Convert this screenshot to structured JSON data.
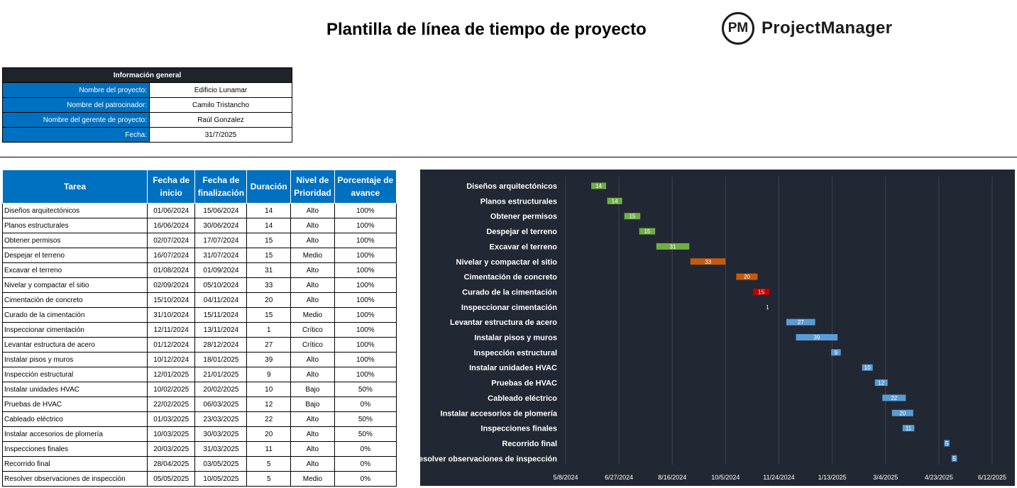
{
  "header": {
    "title": "Plantilla de línea de tiempo de proyecto",
    "logo_mark": "PM",
    "logo_text": "ProjectManager"
  },
  "info": {
    "heading": "Información general",
    "rows": [
      {
        "label": "Nombre del proyecto:",
        "value": "Edificio Lunamar"
      },
      {
        "label": "Nombre del patrocinador:",
        "value": "Camilo Tristancho"
      },
      {
        "label": "Nombre del gerente de proyecto:",
        "value": "Raúl Gonzalez"
      },
      {
        "label": "Fecha:",
        "value": "31/7/2025"
      }
    ]
  },
  "table": {
    "headers": [
      "Tarea",
      "Fecha de inicio",
      "Fecha de finalización",
      "Duración",
      "Nivel de Prioridad",
      "Porcentaje de avance"
    ],
    "rows": [
      {
        "task": "Diseños arquitectónicos",
        "start": "01/06/2024",
        "end": "15/06/2024",
        "duration": "14",
        "priority": "Alto",
        "progress": "100%"
      },
      {
        "task": "Planos estructurales",
        "start": "16/06/2024",
        "end": "30/06/2024",
        "duration": "14",
        "priority": "Alto",
        "progress": "100%"
      },
      {
        "task": "Obtener permisos",
        "start": "02/07/2024",
        "end": "17/07/2024",
        "duration": "15",
        "priority": "Alto",
        "progress": "100%"
      },
      {
        "task": "Despejar el terreno",
        "start": "16/07/2024",
        "end": "31/07/2024",
        "duration": "15",
        "priority": "Medio",
        "progress": "100%"
      },
      {
        "task": "Excavar el terreno",
        "start": "01/08/2024",
        "end": "01/09/2024",
        "duration": "31",
        "priority": "Alto",
        "progress": "100%"
      },
      {
        "task": "Nivelar y compactar el sitio",
        "start": "02/09/2024",
        "end": "05/10/2024",
        "duration": "33",
        "priority": "Alto",
        "progress": "100%"
      },
      {
        "task": "Cimentación de concreto",
        "start": "15/10/2024",
        "end": "04/11/2024",
        "duration": "20",
        "priority": "Alto",
        "progress": "100%"
      },
      {
        "task": "Curado de la cimentación",
        "start": "31/10/2024",
        "end": "15/11/2024",
        "duration": "15",
        "priority": "Medio",
        "progress": "100%"
      },
      {
        "task": "Inspeccionar cimentación",
        "start": "12/11/2024",
        "end": "13/11/2024",
        "duration": "1",
        "priority": "Crítico",
        "progress": "100%"
      },
      {
        "task": "Levantar estructura de acero",
        "start": "01/12/2024",
        "end": "28/12/2024",
        "duration": "27",
        "priority": "Crítico",
        "progress": "100%"
      },
      {
        "task": "Instalar pisos y muros",
        "start": "10/12/2024",
        "end": "18/01/2025",
        "duration": "39",
        "priority": "Alto",
        "progress": "100%"
      },
      {
        "task": "Inspección estructural",
        "start": "12/01/2025",
        "end": "21/01/2025",
        "duration": "9",
        "priority": "Alto",
        "progress": "100%"
      },
      {
        "task": "Instalar unidades HVAC",
        "start": "10/02/2025",
        "end": "20/02/2025",
        "duration": "10",
        "priority": "Bajo",
        "progress": "50%"
      },
      {
        "task": "Pruebas de HVAC",
        "start": "22/02/2025",
        "end": "06/03/2025",
        "duration": "12",
        "priority": "Bajo",
        "progress": "0%"
      },
      {
        "task": "Cableado eléctrico",
        "start": "01/03/2025",
        "end": "23/03/2025",
        "duration": "22",
        "priority": "Alto",
        "progress": "50%"
      },
      {
        "task": "Instalar accesorios de plomería",
        "start": "10/03/2025",
        "end": "30/03/2025",
        "duration": "20",
        "priority": "Alto",
        "progress": "50%"
      },
      {
        "task": "Inspecciones finales",
        "start": "20/03/2025",
        "end": "31/03/2025",
        "duration": "11",
        "priority": "Alto",
        "progress": "0%"
      },
      {
        "task": "Recorrido final",
        "start": "28/04/2025",
        "end": "03/05/2025",
        "duration": "5",
        "priority": "Alto",
        "progress": "0%"
      },
      {
        "task": "Resolver observaciones de inspección",
        "start": "05/05/2025",
        "end": "10/05/2025",
        "duration": "5",
        "priority": "Medio",
        "progress": "0%"
      }
    ]
  },
  "chart_data": {
    "type": "bar",
    "orientation": "horizontal-gantt",
    "title": "",
    "xlabel": "",
    "ylabel": "",
    "grid": true,
    "x_ticks": [
      "2024-05-08",
      "2024-06-27",
      "2024-08-16",
      "2024-10-05",
      "2024-11-24",
      "2025-01-13",
      "2025-03-04",
      "2025-04-23",
      "2025-06-12"
    ],
    "x_tick_labels": [
      "5/8/2024",
      "6/27/2024",
      "8/16/2024",
      "10/5/2024",
      "11/24/2024",
      "1/13/2025",
      "3/4/2025",
      "4/23/2025",
      "6/12/2025"
    ],
    "xlim": [
      "2024-05-08",
      "2025-06-12"
    ],
    "priority_colors": {
      "Alto": "#70ad47",
      "Medio": "#70ad47",
      "Crítico": "#70ad47",
      "Bajo": "#70ad47"
    },
    "tasks": [
      {
        "name": "Diseños arquitectónicos",
        "start": "2024-06-01",
        "duration": 14,
        "color": "#70ad47"
      },
      {
        "name": "Planos estructurales",
        "start": "2024-06-16",
        "duration": 14,
        "color": "#70ad47"
      },
      {
        "name": "Obtener permisos",
        "start": "2024-07-02",
        "duration": 15,
        "color": "#70ad47"
      },
      {
        "name": "Despejar el terreno",
        "start": "2024-07-16",
        "duration": 15,
        "color": "#70ad47"
      },
      {
        "name": "Excavar el terreno",
        "start": "2024-08-01",
        "duration": 31,
        "color": "#70ad47"
      },
      {
        "name": "Nivelar y compactar el sitio",
        "start": "2024-09-02",
        "duration": 33,
        "color": "#c55a11"
      },
      {
        "name": "Cimentación de concreto",
        "start": "2024-10-15",
        "duration": 20,
        "color": "#c55a11"
      },
      {
        "name": "Curado de la cimentación",
        "start": "2024-10-31",
        "duration": 15,
        "color": "#c00000"
      },
      {
        "name": "Inspeccionar cimentación",
        "start": "2024-11-12",
        "duration": 1,
        "color": "#c00000"
      },
      {
        "name": "Levantar estructura de acero",
        "start": "2024-12-01",
        "duration": 27,
        "color": "#5b9bd5"
      },
      {
        "name": "Instalar pisos y muros",
        "start": "2024-12-10",
        "duration": 39,
        "color": "#5b9bd5"
      },
      {
        "name": "Inspección estructural",
        "start": "2025-01-12",
        "duration": 9,
        "color": "#5b9bd5"
      },
      {
        "name": "Instalar unidades HVAC",
        "start": "2025-02-10",
        "duration": 10,
        "color": "#5b9bd5"
      },
      {
        "name": "Pruebas de HVAC",
        "start": "2025-02-22",
        "duration": 12,
        "color": "#5b9bd5"
      },
      {
        "name": "Cableado eléctrico",
        "start": "2025-03-01",
        "duration": 22,
        "color": "#5b9bd5"
      },
      {
        "name": "Instalar accesorios de plomería",
        "start": "2025-03-10",
        "duration": 20,
        "color": "#5b9bd5"
      },
      {
        "name": "Inspecciones finales",
        "start": "2025-03-20",
        "duration": 11,
        "color": "#5b9bd5"
      },
      {
        "name": "Recorrido final",
        "start": "2025-04-28",
        "duration": 5,
        "color": "#5b9bd5"
      },
      {
        "name": "Resolver observaciones de inspección",
        "start": "2025-05-05",
        "duration": 5,
        "color": "#5b9bd5"
      }
    ]
  }
}
